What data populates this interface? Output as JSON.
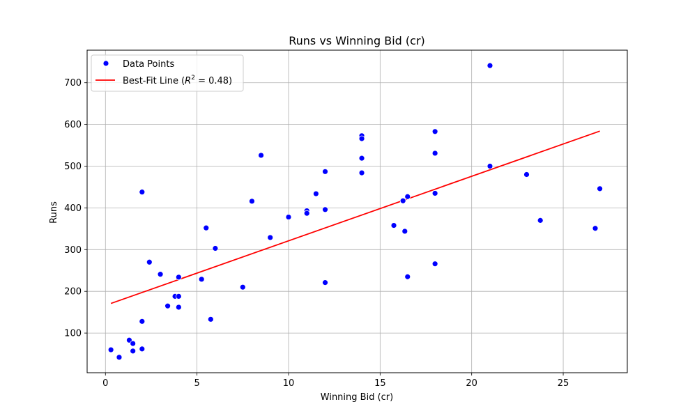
{
  "chart_data": {
    "type": "scatter",
    "title": "Runs vs Winning Bid (cr)",
    "xlabel": "Winning Bid (cr)",
    "ylabel": "Runs",
    "xlim": [
      -1,
      28.5
    ],
    "ylim": [
      5,
      778
    ],
    "xticks": [
      0,
      5,
      10,
      15,
      20,
      25
    ],
    "yticks": [
      100,
      200,
      300,
      400,
      500,
      600,
      700
    ],
    "grid": true,
    "legend_position": "top-left",
    "colors": {
      "points": "#0000ff",
      "line": "#ff0000",
      "grid": "#b0b0b0"
    },
    "series": [
      {
        "name": "Data Points",
        "kind": "scatter",
        "points": [
          [
            0.3,
            60
          ],
          [
            0.75,
            42
          ],
          [
            1.3,
            83
          ],
          [
            1.5,
            75
          ],
          [
            1.5,
            57
          ],
          [
            2.0,
            62
          ],
          [
            2.0,
            128
          ],
          [
            2.0,
            438
          ],
          [
            2.4,
            270
          ],
          [
            3.0,
            241
          ],
          [
            3.4,
            165
          ],
          [
            3.8,
            188
          ],
          [
            4.0,
            188
          ],
          [
            4.0,
            162
          ],
          [
            4.0,
            234
          ],
          [
            5.25,
            229
          ],
          [
            5.5,
            352
          ],
          [
            5.75,
            133
          ],
          [
            6.0,
            303
          ],
          [
            7.5,
            210
          ],
          [
            8.0,
            416
          ],
          [
            8.5,
            526
          ],
          [
            9.0,
            329
          ],
          [
            10.0,
            378
          ],
          [
            11.0,
            393
          ],
          [
            11.0,
            387
          ],
          [
            11.5,
            434
          ],
          [
            12.0,
            487
          ],
          [
            12.0,
            396
          ],
          [
            12.0,
            221
          ],
          [
            14.0,
            573
          ],
          [
            14.0,
            566
          ],
          [
            14.0,
            519
          ],
          [
            14.0,
            484
          ],
          [
            15.75,
            358
          ],
          [
            16.25,
            417
          ],
          [
            16.35,
            344
          ],
          [
            16.5,
            427
          ],
          [
            16.5,
            235
          ],
          [
            18.0,
            583
          ],
          [
            18.0,
            531
          ],
          [
            18.0,
            435
          ],
          [
            18.0,
            266
          ],
          [
            21.0,
            741
          ],
          [
            21.0,
            500
          ],
          [
            23.0,
            480
          ],
          [
            23.75,
            370
          ],
          [
            26.75,
            351
          ],
          [
            27.0,
            446
          ]
        ]
      },
      {
        "name": "Best-Fit Line (",
        "name_math_var": "R",
        "name_math_sup": "2",
        "name_math_rest": " = 0.48)",
        "kind": "line",
        "points": [
          [
            0.3,
            171
          ],
          [
            27.0,
            584
          ]
        ]
      }
    ]
  }
}
